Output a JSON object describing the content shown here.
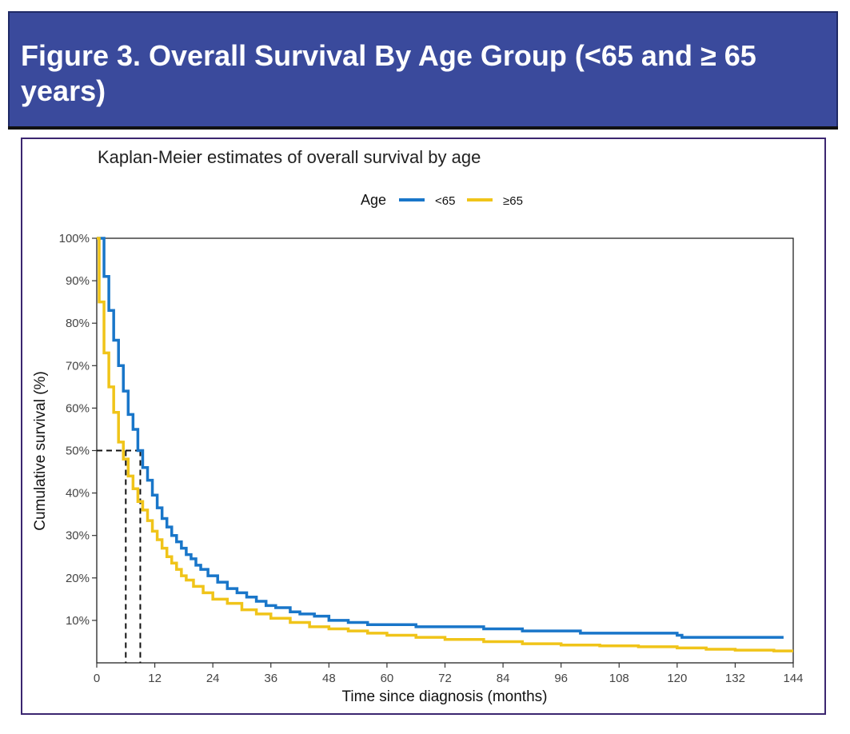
{
  "banner": {
    "title": "Figure 3. Overall Survival By Age Group (<65 and ≥ 65 years)"
  },
  "colors": {
    "banner_bg": "#3a4a9c",
    "panel_border": "#3b2670",
    "series_under65": "#1976c9",
    "series_65plus": "#f0c419"
  },
  "chart_data": {
    "type": "line",
    "title": "Kaplan-Meier estimates of overall survival by age",
    "xlabel": "Time since diagnosis (months)",
    "ylabel": "Cumulative survival (%)",
    "xlim": [
      0,
      144
    ],
    "ylim": [
      0,
      100
    ],
    "x_ticks": [
      0,
      12,
      24,
      36,
      48,
      60,
      72,
      84,
      96,
      108,
      120,
      132,
      144
    ],
    "y_ticks": [
      10,
      20,
      30,
      40,
      50,
      60,
      70,
      80,
      90,
      100
    ],
    "y_tick_labels": [
      "10%",
      "20%",
      "30%",
      "40%",
      "50%",
      "60%",
      "70%",
      "80%",
      "90%",
      "100%"
    ],
    "legend": {
      "title": "Age",
      "position": "top-center"
    },
    "step": true,
    "grid": false,
    "series": [
      {
        "name": "<65",
        "color": "#1976c9",
        "x": [
          0,
          1.5,
          2.5,
          3.5,
          4.5,
          5.5,
          6.5,
          7.5,
          8.5,
          9.5,
          10.5,
          11.5,
          12.5,
          13.5,
          14.5,
          15.5,
          16.5,
          17.5,
          18.5,
          19.5,
          20.5,
          21.5,
          23,
          25,
          27,
          29,
          31,
          33,
          35,
          37,
          40,
          42,
          45,
          48,
          52,
          56,
          60,
          66,
          72,
          80,
          88,
          96,
          100,
          108,
          114,
          120,
          121,
          132,
          140,
          142
        ],
        "y": [
          100,
          91,
          83,
          76,
          70,
          64,
          58.5,
          55,
          50,
          46,
          43,
          39.5,
          36.5,
          34,
          32,
          30,
          28.5,
          27,
          25.5,
          24.5,
          23,
          22,
          20.5,
          19,
          17.5,
          16.5,
          15.5,
          14.5,
          13.5,
          13,
          12,
          11.5,
          11,
          10,
          9.5,
          9,
          9,
          8.5,
          8.5,
          8,
          7.5,
          7.5,
          7,
          7,
          7,
          6.5,
          6,
          6,
          6,
          6
        ]
      },
      {
        "name": "≥65",
        "color": "#f0c419",
        "x": [
          0,
          0.5,
          1.5,
          2.5,
          3.5,
          4.5,
          5.5,
          6.5,
          7.5,
          8.5,
          9.5,
          10.5,
          11.5,
          12.5,
          13.5,
          14.5,
          15.5,
          16.5,
          17.5,
          18.5,
          20,
          22,
          24,
          27,
          30,
          33,
          36,
          40,
          44,
          48,
          52,
          56,
          60,
          66,
          72,
          80,
          88,
          96,
          104,
          112,
          120,
          126,
          132,
          140,
          144
        ],
        "y": [
          100,
          85,
          73,
          65,
          59,
          52,
          48,
          44,
          41,
          38,
          36,
          33.5,
          31,
          29,
          27,
          25,
          23.5,
          22,
          20.5,
          19.5,
          18,
          16.5,
          15,
          14,
          12.5,
          11.5,
          10.5,
          9.5,
          8.5,
          8,
          7.5,
          7,
          6.5,
          6,
          5.5,
          5,
          4.5,
          4.2,
          4,
          3.8,
          3.5,
          3.2,
          3,
          2.8,
          2.8
        ]
      }
    ],
    "reference_lines": {
      "y": 50,
      "x": [
        6,
        9
      ],
      "style": "dashed"
    }
  }
}
